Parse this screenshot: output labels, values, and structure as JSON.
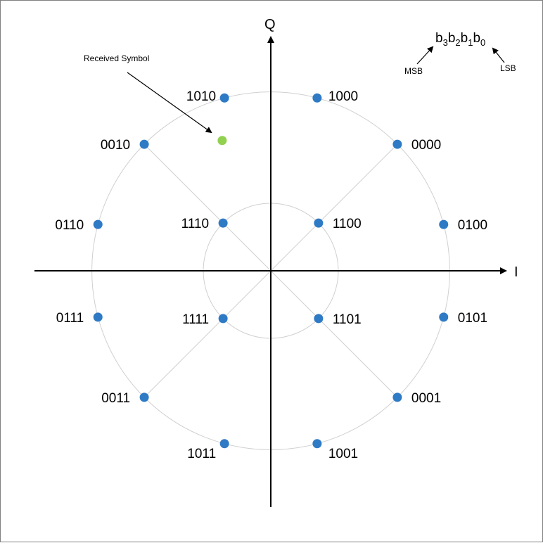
{
  "axes": {
    "i_label": "I",
    "q_label": "Q"
  },
  "annotation": {
    "received_label": "Received Symbol"
  },
  "bit_order": {
    "b": "b",
    "subscripts": [
      "3",
      "2",
      "1",
      "0"
    ],
    "msb_label": "MSB",
    "lsb_label": "LSB"
  },
  "constellation": {
    "type": "16-APSK (4+12)",
    "inner_ring_radius": 1.0,
    "outer_ring_radius": 2.65,
    "point_color": "#2f7ac5",
    "received_color": "#92d050",
    "points": [
      {
        "label": "1100",
        "i": 0.707,
        "q": 0.707
      },
      {
        "label": "1110",
        "i": -0.707,
        "q": 0.707
      },
      {
        "label": "1111",
        "i": -0.707,
        "q": -0.707
      },
      {
        "label": "1101",
        "i": 0.707,
        "q": -0.707
      },
      {
        "label": "1000",
        "i": 0.686,
        "q": 2.56
      },
      {
        "label": "0000",
        "i": 1.874,
        "q": 1.874
      },
      {
        "label": "0100",
        "i": 2.56,
        "q": 0.686
      },
      {
        "label": "0101",
        "i": 2.56,
        "q": -0.686
      },
      {
        "label": "0001",
        "i": 1.874,
        "q": -1.874
      },
      {
        "label": "1001",
        "i": 0.686,
        "q": -2.56
      },
      {
        "label": "1011",
        "i": -0.686,
        "q": -2.56
      },
      {
        "label": "0011",
        "i": -1.874,
        "q": -1.874
      },
      {
        "label": "0111",
        "i": -2.56,
        "q": -0.686
      },
      {
        "label": "0110",
        "i": -2.56,
        "q": 0.686
      },
      {
        "label": "0010",
        "i": -1.874,
        "q": 1.874
      },
      {
        "label": "1010",
        "i": -0.686,
        "q": 2.56
      }
    ],
    "received_symbol": {
      "i": -0.72,
      "q": 1.93
    }
  }
}
